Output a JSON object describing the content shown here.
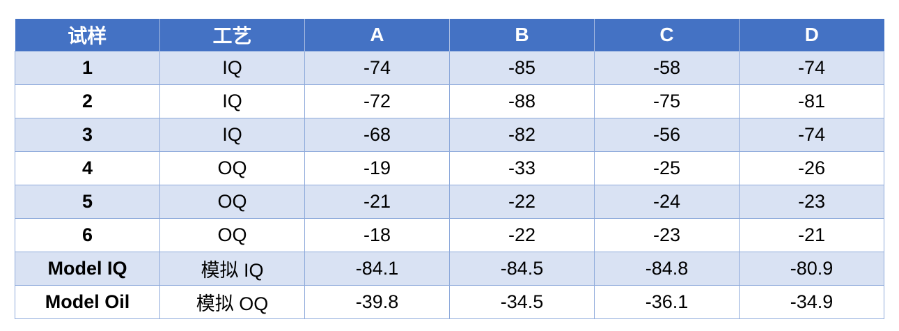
{
  "colors": {
    "header_bg": "#4472C4",
    "header_text": "#FFFFFF",
    "band_row_bg": "#D9E2F3",
    "plain_row_bg": "#FFFFFF",
    "border": "#8EAADB",
    "header_divider": "#A9BCE2",
    "text": "#000000"
  },
  "table": {
    "columns": [
      "试样",
      "工艺",
      "A",
      "B",
      "C",
      "D"
    ],
    "rows": [
      [
        "1",
        "IQ",
        "-74",
        "-85",
        "-58",
        "-74"
      ],
      [
        "2",
        "IQ",
        "-72",
        "-88",
        "-75",
        "-81"
      ],
      [
        "3",
        "IQ",
        "-68",
        "-82",
        "-56",
        "-74"
      ],
      [
        "4",
        "OQ",
        "-19",
        "-33",
        "-25",
        "-26"
      ],
      [
        "5",
        "OQ",
        "-21",
        "-22",
        "-24",
        "-23"
      ],
      [
        "6",
        "OQ",
        "-18",
        "-22",
        "-23",
        "-21"
      ],
      [
        "Model IQ",
        "模拟 IQ",
        "-84.1",
        "-84.5",
        "-84.8",
        "-80.9"
      ],
      [
        "Model Oil",
        "模拟 OQ",
        "-39.8",
        "-34.5",
        "-36.1",
        "-34.9"
      ]
    ]
  }
}
